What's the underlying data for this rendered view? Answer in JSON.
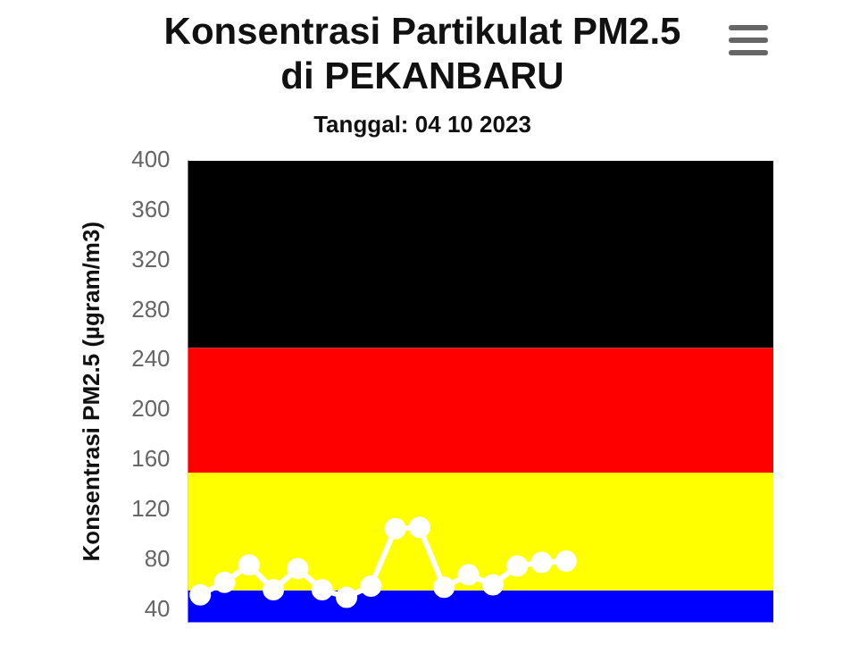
{
  "chart_data": {
    "type": "line",
    "title": "Konsentrasi Partikulat PM2.5\ndi PEKANBARU",
    "subtitle": "Tanggal: 04 10 2023",
    "ylabel": "Konsentrasi PM2.5 (µgram/m3)",
    "categories": [
      null,
      null,
      null,
      null,
      null,
      null,
      null,
      null,
      null,
      null,
      null,
      null,
      null,
      null,
      null,
      null,
      null,
      null,
      null,
      null,
      null,
      null,
      null,
      null
    ],
    "series": [
      {
        "color": "#ffffff",
        "values": [
          52,
          62,
          76,
          56,
          73,
          56,
          50,
          59,
          105,
          106,
          58,
          68,
          60,
          75,
          78,
          79,
          null,
          null,
          null,
          null,
          null,
          null,
          null,
          null
        ]
      }
    ],
    "ylim": [
      30,
      400
    ],
    "yticks": [
      40,
      80,
      120,
      160,
      200,
      240,
      280,
      320,
      360,
      400
    ],
    "bands": [
      {
        "axis": "y",
        "from": 30,
        "to": 55.5,
        "color": "#0000ff"
      },
      {
        "axis": "y",
        "from": 55.5,
        "to": 150,
        "color": "#ffff00"
      },
      {
        "axis": "y",
        "from": 150,
        "to": 250,
        "color": "#ff0000"
      },
      {
        "axis": "y",
        "from": 250,
        "to": 400,
        "color": "#000000"
      }
    ],
    "grid": false,
    "legend": false,
    "marker": "circle",
    "line_style": "solid",
    "tick_labels": "y"
  }
}
